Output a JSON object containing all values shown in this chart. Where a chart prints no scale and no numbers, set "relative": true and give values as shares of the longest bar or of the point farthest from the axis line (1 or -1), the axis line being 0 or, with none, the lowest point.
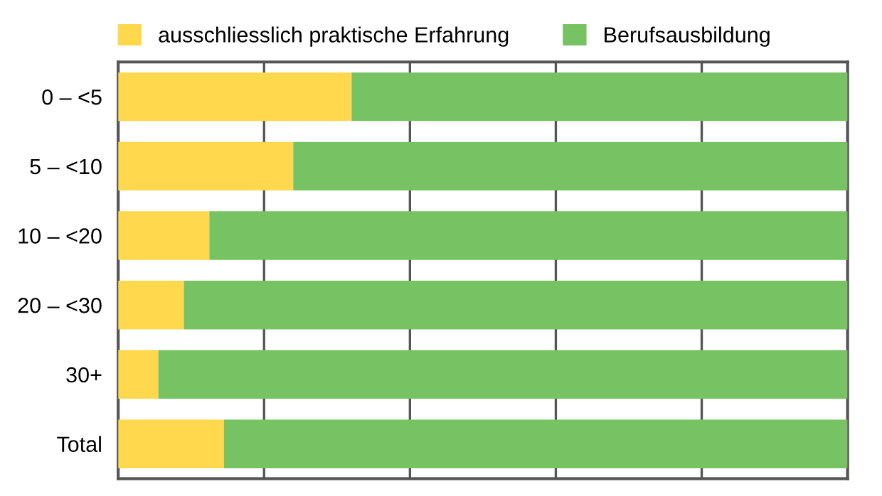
{
  "chart_data": {
    "type": "bar",
    "orientation": "horizontal",
    "stacked": true,
    "relative": true,
    "grid": "x",
    "legend": "top left",
    "tick_labels": "y",
    "categories": [
      "0 – <5",
      "5 – <10",
      "10 – <20",
      "20 – <30",
      "30+",
      "Total"
    ],
    "series": [
      {
        "name": "ausschliesslich praktische Erfahrung",
        "color": "#ffd84d",
        "values": [
          0.32,
          0.24,
          0.125,
          0.09,
          0.055,
          0.145
        ]
      },
      {
        "name": "Berufsausbildung",
        "color": "#77c263",
        "values": [
          0.68,
          0.76,
          0.875,
          0.91,
          0.945,
          0.855
        ]
      }
    ]
  }
}
